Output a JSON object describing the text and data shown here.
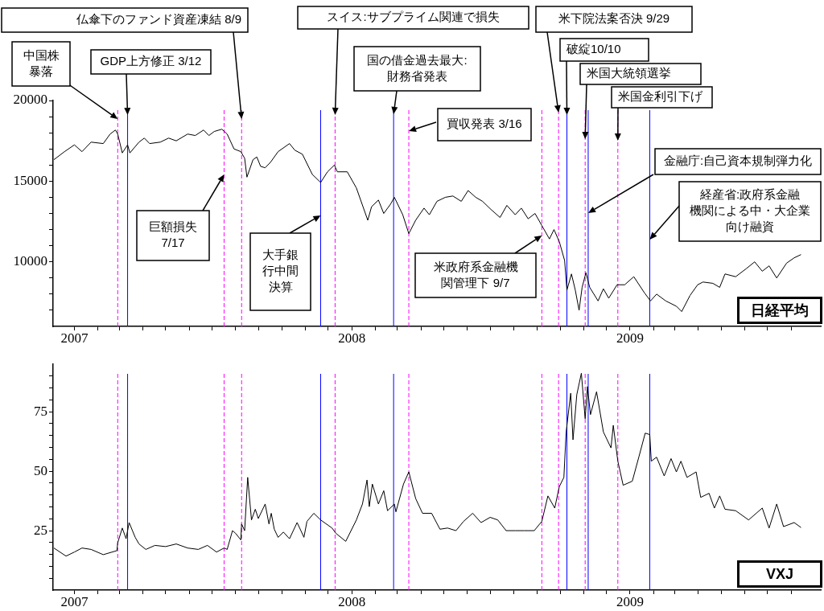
{
  "chart_data": [
    {
      "type": "line",
      "title": "日経平均",
      "grid": false,
      "legend": false,
      "marker": "none",
      "line_style": "solid",
      "xlim": [
        "2006-12-04",
        "2009-09-09"
      ],
      "xticks": [
        {
          "value": "2007-01-01",
          "label": "2007"
        },
        {
          "value": "2007-02-01",
          "label": null
        },
        {
          "value": "2007-03-01",
          "label": null
        },
        {
          "value": "2007-04-01",
          "label": null
        },
        {
          "value": "2007-05-01",
          "label": null
        },
        {
          "value": "2007-06-01",
          "label": null
        },
        {
          "value": "2007-07-01",
          "label": null
        },
        {
          "value": "2007-08-01",
          "label": null
        },
        {
          "value": "2007-09-01",
          "label": null
        },
        {
          "value": "2007-10-01",
          "label": null
        },
        {
          "value": "2007-11-01",
          "label": null
        },
        {
          "value": "2007-12-01",
          "label": null
        },
        {
          "value": "2008-01-01",
          "label": "2008"
        },
        {
          "value": "2008-02-01",
          "label": null
        },
        {
          "value": "2008-03-01",
          "label": null
        },
        {
          "value": "2008-04-01",
          "label": null
        },
        {
          "value": "2008-05-01",
          "label": null
        },
        {
          "value": "2008-06-01",
          "label": null
        },
        {
          "value": "2008-07-01",
          "label": null
        },
        {
          "value": "2008-08-01",
          "label": null
        },
        {
          "value": "2008-09-01",
          "label": null
        },
        {
          "value": "2008-10-01",
          "label": null
        },
        {
          "value": "2008-11-01",
          "label": null
        },
        {
          "value": "2008-12-01",
          "label": null
        },
        {
          "value": "2009-01-01",
          "label": "2009"
        },
        {
          "value": "2009-02-01",
          "label": null
        },
        {
          "value": "2009-03-01",
          "label": null
        },
        {
          "value": "2009-04-01",
          "label": null
        },
        {
          "value": "2009-05-01",
          "label": null
        },
        {
          "value": "2009-06-01",
          "label": null
        },
        {
          "value": "2009-07-01",
          "label": null
        },
        {
          "value": "2009-08-01",
          "label": null
        }
      ],
      "ylim": [
        6000,
        20000
      ],
      "yticks": [
        {
          "value": 7000,
          "label": null
        },
        {
          "value": 8000,
          "label": null
        },
        {
          "value": 9000,
          "label": null
        },
        10000,
        {
          "value": 11000,
          "label": null
        },
        {
          "value": 12000,
          "label": null
        },
        {
          "value": 13000,
          "label": null
        },
        {
          "value": 14000,
          "label": null
        },
        15000,
        {
          "value": 16000,
          "label": null
        },
        {
          "value": 17000,
          "label": null
        },
        {
          "value": 18000,
          "label": null
        },
        {
          "value": 19000,
          "label": null
        },
        20000
      ],
      "x": [
        "2006-12-05",
        "2006-12-19",
        "2007-01-01",
        "2007-01-11",
        "2007-01-23",
        "2007-02-08",
        "2007-02-17",
        "2007-02-24",
        "2007-02-27",
        "2007-03-05",
        "2007-03-12",
        "2007-03-15",
        "2007-03-27",
        "2007-04-03",
        "2007-04-10",
        "2007-04-24",
        "2007-05-05",
        "2007-05-15",
        "2007-05-30",
        "2007-06-09",
        "2007-06-20",
        "2007-06-27",
        "2007-07-04",
        "2007-07-14",
        "2007-07-21",
        "2007-07-30",
        "2007-08-08",
        "2007-08-13",
        "2007-08-16",
        "2007-08-24",
        "2007-08-29",
        "2007-09-03",
        "2007-09-09",
        "2007-09-16",
        "2007-09-26",
        "2007-10-11",
        "2007-10-18",
        "2007-10-28",
        "2007-11-10",
        "2007-11-21",
        "2007-11-30",
        "2007-12-09",
        "2007-12-13",
        "2007-12-26",
        "2008-01-07",
        "2008-01-22",
        "2008-01-27",
        "2008-02-05",
        "2008-02-12",
        "2008-02-21",
        "2008-02-26",
        "2008-03-08",
        "2008-03-16",
        "2008-03-25",
        "2008-04-05",
        "2008-04-12",
        "2008-04-22",
        "2008-05-03",
        "2008-05-13",
        "2008-05-24",
        "2008-06-02",
        "2008-06-12",
        "2008-06-21",
        "2008-07-02",
        "2008-07-14",
        "2008-07-23",
        "2008-08-03",
        "2008-08-11",
        "2008-08-20",
        "2008-08-29",
        "2008-09-07",
        "2008-09-17",
        "2008-09-23",
        "2008-09-30",
        "2008-10-07",
        "2008-10-10",
        "2008-10-16",
        "2008-10-21",
        "2008-10-26",
        "2008-10-30",
        "2008-11-04",
        "2008-11-09",
        "2008-11-20",
        "2008-11-27",
        "2008-12-04",
        "2008-12-15",
        "2008-12-25",
        "2009-01-06",
        "2009-01-20",
        "2009-01-28",
        "2009-02-05",
        "2009-02-17",
        "2009-03-03",
        "2009-03-10",
        "2009-03-21",
        "2009-03-31",
        "2009-04-07",
        "2009-04-20",
        "2009-04-29",
        "2009-05-06",
        "2009-05-20",
        "2009-06-03",
        "2009-06-14",
        "2009-06-24",
        "2009-07-03",
        "2009-07-13",
        "2009-07-26",
        "2009-08-05",
        "2009-08-14"
      ],
      "series": [
        {
          "color": "#000000",
          "values": [
            16330,
            16830,
            17250,
            16830,
            17420,
            17330,
            17920,
            18170,
            17920,
            16750,
            17250,
            16750,
            17420,
            17670,
            17330,
            17420,
            17670,
            17500,
            17920,
            17830,
            18170,
            17830,
            18080,
            18220,
            17920,
            17000,
            16830,
            16420,
            15250,
            16330,
            16500,
            15920,
            15830,
            16170,
            16830,
            17330,
            16920,
            16670,
            15420,
            14920,
            15580,
            16000,
            15580,
            15580,
            14580,
            12580,
            13420,
            13830,
            13000,
            13580,
            14000,
            12920,
            11750,
            12580,
            13330,
            12920,
            13750,
            14000,
            14080,
            13750,
            14420,
            14000,
            13750,
            13250,
            12750,
            13500,
            12920,
            13330,
            12670,
            13000,
            12250,
            11420,
            12000,
            11250,
            10080,
            8250,
            9250,
            8250,
            7000,
            8420,
            9330,
            8420,
            7580,
            8330,
            7750,
            8580,
            8580,
            9080,
            8080,
            7580,
            8000,
            7580,
            7250,
            6920,
            7920,
            8580,
            8750,
            8670,
            8420,
            9250,
            9080,
            9580,
            10000,
            9420,
            9750,
            9000,
            9920,
            10250,
            10450
          ]
        }
      ],
      "ref_lines": [
        {
          "axis": "x",
          "value": "2007-02-27",
          "color": "#ff00ff",
          "line_style": "dashed",
          "label": "中国株暴落"
        },
        {
          "axis": "x",
          "value": "2007-03-12",
          "color": "#0000ff",
          "line_style": "solid",
          "label": "GDP上方修正 3/12"
        },
        {
          "axis": "x",
          "value": "2007-07-17",
          "color": "#ff00ff",
          "line_style": "dashed",
          "label": "巨額損失 7/17"
        },
        {
          "axis": "x",
          "value": "2007-08-09",
          "color": "#ff00ff",
          "line_style": "dashed",
          "label": "仏傘下のファンド資産凍結 8/9"
        },
        {
          "axis": "x",
          "value": "2007-11-21",
          "color": "#0000ff",
          "line_style": "solid",
          "label": "大手銀行中間決算"
        },
        {
          "axis": "x",
          "value": "2007-12-10",
          "color": "#ff00ff",
          "line_style": "dashed",
          "label": "スイス:サブプライム関連で損失"
        },
        {
          "axis": "x",
          "value": "2008-02-25",
          "color": "#0000ff",
          "line_style": "solid",
          "label": "国の借金過去最大:財務省発表"
        },
        {
          "axis": "x",
          "value": "2008-03-16",
          "color": "#ff00ff",
          "line_style": "dashed",
          "label": "買収発表 3/16"
        },
        {
          "axis": "x",
          "value": "2008-09-07",
          "color": "#ff00ff",
          "line_style": "dashed",
          "label": "米政府系金融機関管理下 9/7"
        },
        {
          "axis": "x",
          "value": "2008-09-29",
          "color": "#ff00ff",
          "line_style": "dashed",
          "label": "米下院法案否決 9/29"
        },
        {
          "axis": "x",
          "value": "2008-10-10",
          "color": "#0000ff",
          "line_style": "solid",
          "label": "破綻10/10"
        },
        {
          "axis": "x",
          "value": "2008-11-03",
          "color": "#ff00ff",
          "line_style": "dashed",
          "label": "米国大統領選挙"
        },
        {
          "axis": "x",
          "value": "2008-11-07",
          "color": "#0000ff",
          "line_style": "solid",
          "label": "金融庁:自己資本規制弾力化"
        },
        {
          "axis": "x",
          "value": "2008-12-16",
          "color": "#ff00ff",
          "line_style": "dashed",
          "label": "米国金利引下げ"
        },
        {
          "axis": "x",
          "value": "2009-01-27",
          "color": "#0000ff",
          "line_style": "solid",
          "label": "経産省:政府系金融機関による中・大企業向け融資"
        }
      ]
    },
    {
      "type": "line",
      "title": "VXJ",
      "grid": false,
      "legend": false,
      "marker": "none",
      "line_style": "solid",
      "xlim": [
        "2006-12-04",
        "2009-09-09"
      ],
      "xticks": [
        {
          "value": "2007-01-01",
          "label": "2007"
        },
        {
          "value": "2007-02-01",
          "label": null
        },
        {
          "value": "2007-03-01",
          "label": null
        },
        {
          "value": "2007-04-01",
          "label": null
        },
        {
          "value": "2007-05-01",
          "label": null
        },
        {
          "value": "2007-06-01",
          "label": null
        },
        {
          "value": "2007-07-01",
          "label": null
        },
        {
          "value": "2007-08-01",
          "label": null
        },
        {
          "value": "2007-09-01",
          "label": null
        },
        {
          "value": "2007-10-01",
          "label": null
        },
        {
          "value": "2007-11-01",
          "label": null
        },
        {
          "value": "2007-12-01",
          "label": null
        },
        {
          "value": "2008-01-01",
          "label": "2008"
        },
        {
          "value": "2008-02-01",
          "label": null
        },
        {
          "value": "2008-03-01",
          "label": null
        },
        {
          "value": "2008-04-01",
          "label": null
        },
        {
          "value": "2008-05-01",
          "label": null
        },
        {
          "value": "2008-06-01",
          "label": null
        },
        {
          "value": "2008-07-01",
          "label": null
        },
        {
          "value": "2008-08-01",
          "label": null
        },
        {
          "value": "2008-09-01",
          "label": null
        },
        {
          "value": "2008-10-01",
          "label": null
        },
        {
          "value": "2008-11-01",
          "label": null
        },
        {
          "value": "2008-12-01",
          "label": null
        },
        {
          "value": "2009-01-01",
          "label": "2009"
        },
        {
          "value": "2009-02-01",
          "label": null
        },
        {
          "value": "2009-03-01",
          "label": null
        },
        {
          "value": "2009-04-01",
          "label": null
        },
        {
          "value": "2009-05-01",
          "label": null
        },
        {
          "value": "2009-06-01",
          "label": null
        },
        {
          "value": "2009-07-01",
          "label": null
        },
        {
          "value": "2009-08-01",
          "label": null
        }
      ],
      "ylim": [
        0,
        95
      ],
      "yticks": [
        {
          "value": 5,
          "label": null
        },
        {
          "value": 10,
          "label": null
        },
        {
          "value": 15,
          "label": null
        },
        {
          "value": 20,
          "label": null
        },
        25,
        {
          "value": 30,
          "label": null
        },
        {
          "value": 35,
          "label": null
        },
        {
          "value": 40,
          "label": null
        },
        {
          "value": 45,
          "label": null
        },
        50,
        {
          "value": 55,
          "label": null
        },
        {
          "value": 60,
          "label": null
        },
        {
          "value": 65,
          "label": null
        },
        {
          "value": 70,
          "label": null
        },
        75,
        {
          "value": 80,
          "label": null
        },
        {
          "value": 85,
          "label": null
        },
        {
          "value": 90,
          "label": null
        }
      ],
      "x": [
        "2006-12-05",
        "2006-12-21",
        "2007-01-01",
        "2007-01-11",
        "2007-01-23",
        "2007-02-08",
        "2007-02-26",
        "2007-02-27",
        "2007-03-05",
        "2007-03-10",
        "2007-03-14",
        "2007-03-22",
        "2007-03-27",
        "2007-04-05",
        "2007-04-17",
        "2007-05-01",
        "2007-05-15",
        "2007-05-30",
        "2007-06-13",
        "2007-06-25",
        "2007-07-07",
        "2007-07-17",
        "2007-07-21",
        "2007-07-28",
        "2007-08-01",
        "2007-08-08",
        "2007-08-09",
        "2007-08-13",
        "2007-08-17",
        "2007-08-22",
        "2007-08-27",
        "2007-08-31",
        "2007-09-09",
        "2007-09-14",
        "2007-09-17",
        "2007-09-21",
        "2007-09-26",
        "2007-10-03",
        "2007-10-11",
        "2007-10-21",
        "2007-10-26",
        "2007-10-30",
        "2007-11-03",
        "2007-11-12",
        "2007-11-21",
        "2007-12-06",
        "2007-12-11",
        "2007-12-24",
        "2008-01-07",
        "2008-01-15",
        "2008-01-21",
        "2008-01-24",
        "2008-01-28",
        "2008-02-05",
        "2008-02-12",
        "2008-02-17",
        "2008-02-26",
        "2008-02-28",
        "2008-03-09",
        "2008-03-16",
        "2008-03-25",
        "2008-04-03",
        "2008-04-15",
        "2008-04-26",
        "2008-05-06",
        "2008-05-17",
        "2008-05-27",
        "2008-06-08",
        "2008-06-19",
        "2008-07-01",
        "2008-07-11",
        "2008-07-22",
        "2008-08-03",
        "2008-08-15",
        "2008-08-28",
        "2008-09-07",
        "2008-09-15",
        "2008-09-24",
        "2008-09-30",
        "2008-10-06",
        "2008-10-09",
        "2008-10-15",
        "2008-10-18",
        "2008-10-23",
        "2008-10-29",
        "2008-11-03",
        "2008-11-06",
        "2008-11-10",
        "2008-11-18",
        "2008-11-27",
        "2008-12-07",
        "2008-12-10",
        "2008-12-16",
        "2008-12-23",
        "2009-01-04",
        "2009-01-13",
        "2009-01-21",
        "2009-01-27",
        "2009-01-29",
        "2009-02-05",
        "2009-02-15",
        "2009-02-24",
        "2009-03-03",
        "2009-03-09",
        "2009-03-17",
        "2009-03-29",
        "2009-04-04",
        "2009-04-15",
        "2009-04-22",
        "2009-04-29",
        "2009-05-06",
        "2009-05-20",
        "2009-06-06",
        "2009-06-24",
        "2009-07-03",
        "2009-07-13",
        "2009-07-22",
        "2009-08-05",
        "2009-08-14"
      ],
      "series": [
        {
          "color": "#000000",
          "values": [
            17.7,
            14.3,
            16,
            17.7,
            17.1,
            14.9,
            16.6,
            19.9,
            26.1,
            21.6,
            28.4,
            22.2,
            19.4,
            17.1,
            18.8,
            18.3,
            19.4,
            17.7,
            17.1,
            18.8,
            16,
            17.7,
            17.1,
            25,
            23.9,
            21.1,
            27.8,
            25,
            47.4,
            29.5,
            34,
            30.1,
            36.2,
            27.8,
            32.3,
            25.6,
            22.2,
            24.4,
            21.6,
            28.4,
            25,
            22.2,
            28.9,
            32.3,
            29.5,
            26.1,
            23.9,
            20.5,
            29.5,
            36.2,
            46.3,
            35.1,
            44.6,
            36.2,
            41.8,
            33.4,
            36.2,
            32.9,
            44.6,
            49.7,
            38.5,
            32.3,
            32.3,
            25.6,
            26.1,
            25,
            28.9,
            32.3,
            28.4,
            30.6,
            29.5,
            25,
            25,
            25,
            25,
            28.9,
            39.6,
            34.5,
            43.5,
            47.4,
            66.5,
            82.8,
            63.2,
            82.2,
            91.2,
            72.1,
            85.6,
            73.8,
            83.4,
            66.5,
            59.8,
            69.3,
            54.2,
            44.1,
            45.8,
            56.4,
            66,
            65.4,
            54.2,
            55.9,
            48,
            55.3,
            49.7,
            54.2,
            47.4,
            49.7,
            39,
            40.7,
            34.5,
            39.6,
            34,
            33.4,
            29.5,
            34.5,
            26.1,
            36.2,
            26.7,
            28.4,
            26.3
          ]
        }
      ],
      "ref_lines": [
        {
          "axis": "x",
          "value": "2007-02-27",
          "color": "#ff00ff",
          "line_style": "dashed"
        },
        {
          "axis": "x",
          "value": "2007-03-12",
          "color": "#0000ff",
          "line_style": "solid"
        },
        {
          "axis": "x",
          "value": "2007-07-17",
          "color": "#ff00ff",
          "line_style": "dashed"
        },
        {
          "axis": "x",
          "value": "2007-08-09",
          "color": "#ff00ff",
          "line_style": "dashed"
        },
        {
          "axis": "x",
          "value": "2007-11-21",
          "color": "#0000ff",
          "line_style": "solid"
        },
        {
          "axis": "x",
          "value": "2007-12-10",
          "color": "#ff00ff",
          "line_style": "dashed"
        },
        {
          "axis": "x",
          "value": "2008-02-25",
          "color": "#0000ff",
          "line_style": "solid"
        },
        {
          "axis": "x",
          "value": "2008-03-16",
          "color": "#ff00ff",
          "line_style": "dashed"
        },
        {
          "axis": "x",
          "value": "2008-09-07",
          "color": "#ff00ff",
          "line_style": "dashed"
        },
        {
          "axis": "x",
          "value": "2008-09-29",
          "color": "#ff00ff",
          "line_style": "dashed"
        },
        {
          "axis": "x",
          "value": "2008-10-10",
          "color": "#0000ff",
          "line_style": "solid"
        },
        {
          "axis": "x",
          "value": "2008-11-03",
          "color": "#ff00ff",
          "line_style": "dashed"
        },
        {
          "axis": "x",
          "value": "2008-11-07",
          "color": "#0000ff",
          "line_style": "solid"
        },
        {
          "axis": "x",
          "value": "2008-12-16",
          "color": "#ff00ff",
          "line_style": "dashed"
        },
        {
          "axis": "x",
          "value": "2009-01-27",
          "color": "#0000ff",
          "line_style": "solid"
        }
      ]
    }
  ]
}
